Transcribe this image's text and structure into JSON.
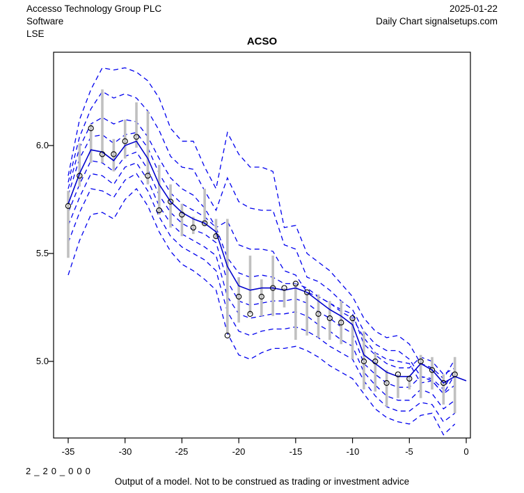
{
  "header": {
    "company": "Accesso Technology Group PLC",
    "sector": "Software",
    "exchange": "LSE",
    "date": "2025-01-22",
    "chart_type": "Daily Chart signalsetups.com"
  },
  "footer": {
    "code": "2_20_000",
    "disclaimer": "Output of a model. Not to be construed as trading or investment advice"
  },
  "chart_data": {
    "type": "line",
    "title": "ACSO",
    "xlabel": "",
    "ylabel": "",
    "grid": false,
    "legend": "none",
    "xlim": [
      -36.6,
      0.4
    ],
    "ylim": [
      4.645,
      6.435
    ],
    "x_ticks": [
      -35,
      -30,
      -25,
      -20,
      -15,
      -10,
      -5,
      0
    ],
    "x_tick_labels": [
      "-35",
      "-30",
      "-25",
      "-20",
      "-15",
      "-10",
      "-5",
      "0"
    ],
    "y_ticks": [
      6.0,
      5.5,
      5.0
    ],
    "y_tick_labels": [
      "6.0",
      "5.5",
      "5.0"
    ],
    "colors": {
      "band_dashed": "#0000EE",
      "median_solid": "#0000CD",
      "range_bar": "#C0C0C0",
      "point_outline": "#000000",
      "axis": "#000000"
    },
    "x": [
      -35,
      -34,
      -33,
      -32,
      -31,
      -30,
      -29,
      -28,
      -27,
      -26,
      -25,
      -24,
      -23,
      -22,
      -21,
      -20,
      -19,
      -18,
      -17,
      -16,
      -15,
      -14,
      -13,
      -12,
      -11,
      -10,
      -9,
      -8,
      -7,
      -6,
      -5,
      -4,
      -3,
      -2,
      -1,
      0
    ],
    "series": [
      {
        "name": "upper-band-1",
        "style": "dashed",
        "values": [
          5.86,
          6.12,
          6.26,
          6.36,
          6.35,
          6.36,
          6.34,
          6.3,
          6.22,
          6.08,
          6.02,
          6.02,
          5.9,
          5.8,
          6.06,
          5.96,
          5.9,
          5.9,
          5.88,
          5.62,
          5.63,
          5.5,
          5.46,
          5.42,
          5.36,
          5.3,
          5.2,
          5.14,
          5.11,
          5.12,
          5.08,
          4.99,
          4.97,
          4.92,
          5.01
        ]
      },
      {
        "name": "upper-band-2",
        "style": "dashed",
        "values": [
          5.83,
          6.04,
          6.17,
          6.25,
          6.22,
          6.24,
          6.22,
          6.16,
          6.07,
          5.95,
          5.9,
          5.89,
          5.79,
          5.7,
          5.85,
          5.74,
          5.71,
          5.7,
          5.7,
          5.54,
          5.52,
          5.39,
          5.37,
          5.33,
          5.28,
          5.24,
          5.14,
          5.08,
          5.05,
          5.05,
          5.01,
          4.93,
          4.92,
          4.87,
          4.97
        ]
      },
      {
        "name": "upper-band-3",
        "style": "dashed",
        "values": [
          5.8,
          5.99,
          6.1,
          6.13,
          6.1,
          6.12,
          6.11,
          6.04,
          5.94,
          5.85,
          5.8,
          5.77,
          5.71,
          5.62,
          5.65,
          5.54,
          5.52,
          5.52,
          5.51,
          5.42,
          5.4,
          5.32,
          5.3,
          5.27,
          5.23,
          5.2,
          5.11,
          5.04,
          5.01,
          5.0,
          4.99,
          4.9,
          4.91,
          4.85,
          4.94
        ]
      },
      {
        "name": "upper-band-4",
        "style": "dashed",
        "values": [
          5.77,
          5.94,
          6.04,
          6.05,
          6.01,
          6.05,
          6.06,
          5.99,
          5.87,
          5.78,
          5.73,
          5.7,
          5.67,
          5.62,
          5.48,
          5.41,
          5.39,
          5.4,
          5.39,
          5.36,
          5.36,
          5.34,
          5.3,
          5.27,
          5.24,
          5.22,
          5.08,
          5.03,
          4.99,
          4.97,
          4.97,
          5.02,
          5.0,
          4.94,
          4.97
        ]
      },
      {
        "name": "model-median",
        "style": "solid",
        "values": [
          5.73,
          5.87,
          5.98,
          5.97,
          5.93,
          6.0,
          6.02,
          5.94,
          5.82,
          5.74,
          5.69,
          5.66,
          5.64,
          5.6,
          5.44,
          5.35,
          5.33,
          5.34,
          5.34,
          5.33,
          5.34,
          5.32,
          5.28,
          5.24,
          5.21,
          5.17,
          5.03,
          4.99,
          4.95,
          4.93,
          4.93,
          4.99,
          4.96,
          4.9,
          4.93,
          4.91
        ]
      },
      {
        "name": "lower-band-1",
        "style": "dashed",
        "values": [
          5.69,
          5.82,
          5.93,
          5.92,
          5.88,
          5.95,
          5.97,
          5.89,
          5.77,
          5.69,
          5.64,
          5.61,
          5.59,
          5.55,
          5.37,
          5.28,
          5.26,
          5.27,
          5.28,
          5.28,
          5.29,
          5.27,
          5.23,
          5.2,
          5.16,
          5.13,
          4.99,
          4.94,
          4.9,
          4.88,
          4.88,
          4.93,
          4.91,
          4.85,
          4.89
        ]
      },
      {
        "name": "lower-band-2",
        "style": "dashed",
        "values": [
          5.63,
          5.76,
          5.87,
          5.86,
          5.82,
          5.9,
          5.92,
          5.84,
          5.72,
          5.64,
          5.59,
          5.56,
          5.53,
          5.49,
          5.3,
          5.22,
          5.2,
          5.21,
          5.22,
          5.22,
          5.23,
          5.21,
          5.17,
          5.14,
          5.1,
          5.07,
          4.95,
          4.89,
          4.84,
          4.82,
          4.82,
          4.87,
          4.85,
          4.78,
          4.82
        ]
      },
      {
        "name": "lower-band-3",
        "style": "dashed",
        "values": [
          5.55,
          5.69,
          5.8,
          5.79,
          5.76,
          5.84,
          5.87,
          5.79,
          5.67,
          5.58,
          5.53,
          5.5,
          5.47,
          5.42,
          5.23,
          5.14,
          5.12,
          5.14,
          5.15,
          5.15,
          5.16,
          5.14,
          5.11,
          5.07,
          5.04,
          5.01,
          4.91,
          4.84,
          4.79,
          4.77,
          4.77,
          4.81,
          4.8,
          4.72,
          4.76
        ]
      },
      {
        "name": "lower-band-4",
        "style": "dashed",
        "values": [
          5.4,
          5.56,
          5.68,
          5.69,
          5.66,
          5.75,
          5.8,
          5.72,
          5.6,
          5.51,
          5.45,
          5.42,
          5.38,
          5.33,
          5.13,
          5.03,
          5.01,
          5.04,
          5.06,
          5.06,
          5.07,
          5.05,
          5.02,
          4.98,
          4.95,
          4.92,
          4.85,
          4.78,
          4.74,
          4.72,
          4.71,
          4.75,
          4.76,
          4.66,
          4.71
        ]
      }
    ],
    "bars": {
      "name": "daily-range",
      "low": [
        5.48,
        5.81,
        5.92,
        5.92,
        5.88,
        5.94,
        5.99,
        5.82,
        5.68,
        5.62,
        5.58,
        5.59,
        5.63,
        5.57,
        5.13,
        5.18,
        5.22,
        5.21,
        5.21,
        5.25,
        5.1,
        5.12,
        5.11,
        5.1,
        5.08,
        5.01,
        4.87,
        4.86,
        4.79,
        4.83,
        4.87,
        4.83,
        4.87,
        4.8,
        4.76
      ],
      "high": [
        5.79,
        6.01,
        6.1,
        6.26,
        6.03,
        6.12,
        6.2,
        6.16,
        5.91,
        5.82,
        5.73,
        5.67,
        5.8,
        5.66,
        5.66,
        5.39,
        5.49,
        5.38,
        5.49,
        5.34,
        5.36,
        5.32,
        5.31,
        5.28,
        5.28,
        5.2,
        5.14,
        5.04,
        4.96,
        4.94,
        4.93,
        5.03,
        5.02,
        4.94,
        5.02
      ]
    },
    "points": {
      "name": "observed-price",
      "values": [
        5.72,
        5.86,
        6.08,
        5.96,
        5.96,
        6.02,
        6.04,
        5.86,
        5.7,
        5.74,
        5.68,
        5.62,
        5.64,
        5.58,
        5.12,
        5.3,
        5.22,
        5.3,
        5.34,
        5.34,
        5.36,
        5.32,
        5.22,
        5.2,
        5.18,
        5.2,
        5.0,
        5.0,
        4.9,
        4.94,
        4.92,
        5.0,
        4.96,
        4.9,
        4.94
      ]
    }
  }
}
